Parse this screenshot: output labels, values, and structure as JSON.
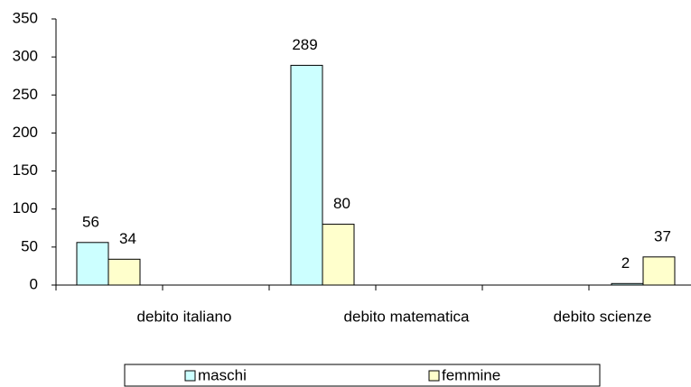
{
  "chart_data": {
    "type": "bar",
    "categories": [
      "debito italiano",
      "debito matematica",
      "debito scienze"
    ],
    "series": [
      {
        "name": "maschi",
        "color": "#ccffff",
        "values": [
          56,
          289,
          2
        ]
      },
      {
        "name": "femmine",
        "color": "#ffffcc",
        "values": [
          34,
          80,
          37
        ]
      }
    ],
    "ylim": [
      0,
      350
    ],
    "yticks": [
      0,
      50,
      100,
      150,
      200,
      250,
      300,
      350
    ],
    "legend": "bottom",
    "data_labels": true
  }
}
